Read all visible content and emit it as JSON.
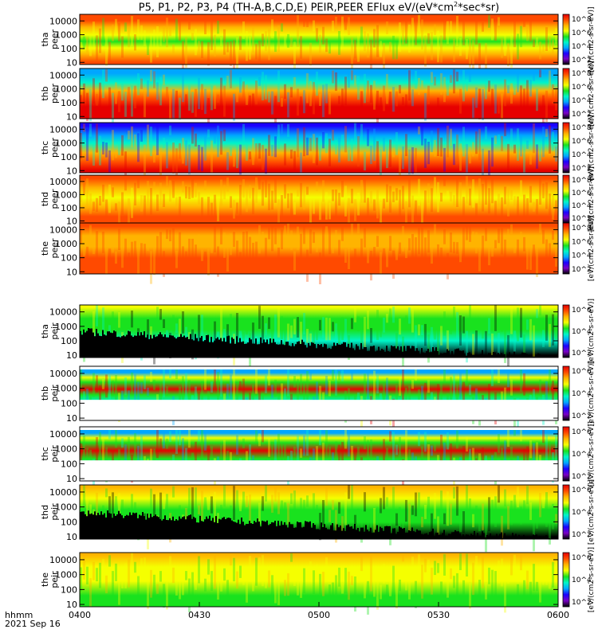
{
  "title": {
    "pre": "P5, P1, P2, P3, P4 (TH-A,B,C,D,E) PEIR,PEER EFlux eV/(eV*cm",
    "exp": "2",
    "post": "*sec*sr)"
  },
  "time_axis": {
    "caption": "hhmm",
    "date": "2021 Sep 16",
    "ticks": [
      "0400",
      "0430",
      "0500",
      "0530",
      "0600"
    ],
    "range_minutes": [
      0,
      120
    ]
  },
  "y_ticks": [
    "10",
    "100",
    "1000",
    "10000"
  ],
  "colorbar_unit": "[eV/(cm2-s-sr-eV)]",
  "colors": {
    "palette": [
      "#000000",
      "#7a00c4",
      "#1c00ff",
      "#00a6ff",
      "#00f5c8",
      "#19e21e",
      "#f5ff00",
      "#ffb400",
      "#ff4a00",
      "#e60000"
    ]
  },
  "chart_data": [
    {
      "type": "heatmap",
      "label_line1": "tha",
      "label_line2": "peer",
      "ylim": [
        7,
        30000
      ],
      "yscale": "log",
      "cb_ticks": [
        "10^8",
        "10^6",
        "10^4",
        "10^2"
      ],
      "grid": false
    },
    {
      "type": "heatmap",
      "label_line1": "thb",
      "label_line2": "peer",
      "ylim": [
        7,
        30000
      ],
      "yscale": "log",
      "cb_ticks": [
        "10^8",
        "10^6",
        "10^4",
        "10^2"
      ],
      "grid": false
    },
    {
      "type": "heatmap",
      "label_line1": "thc",
      "label_line2": "peer",
      "ylim": [
        7,
        30000
      ],
      "yscale": "log",
      "cb_ticks": [
        "10^8",
        "10^6",
        "10^4",
        "10^2"
      ],
      "grid": false
    },
    {
      "type": "heatmap",
      "label_line1": "thd",
      "label_line2": "peer",
      "ylim": [
        7,
        30000
      ],
      "yscale": "log",
      "cb_ticks": [
        "10^8",
        "10^6",
        "10^4",
        "10^2"
      ],
      "grid": false
    },
    {
      "type": "heatmap",
      "label_line1": "the",
      "label_line2": "peer",
      "ylim": [
        7,
        30000
      ],
      "yscale": "log",
      "cb_ticks": [
        "10^8",
        "10^6",
        "10^4",
        "10^2"
      ],
      "grid": false
    },
    {
      "type": "heatmap",
      "label_line1": "tha",
      "label_line2": "peir",
      "ylim": [
        7,
        30000
      ],
      "yscale": "log",
      "cb_ticks": [
        "10^6",
        "10^4",
        "10^2"
      ],
      "grid": false
    },
    {
      "type": "heatmap",
      "label_line1": "thb",
      "label_line2": "peir",
      "ylim": [
        7,
        30000
      ],
      "yscale": "log",
      "cb_ticks": [
        "10^6",
        "10^4",
        "10^2"
      ],
      "grid": false
    },
    {
      "type": "heatmap",
      "label_line1": "thc",
      "label_line2": "peir",
      "ylim": [
        7,
        30000
      ],
      "yscale": "log",
      "cb_ticks": [
        "10^6",
        "10^4",
        "10^2"
      ],
      "grid": false
    },
    {
      "type": "heatmap",
      "label_line1": "thd",
      "label_line2": "peir",
      "ylim": [
        7,
        30000
      ],
      "yscale": "log",
      "cb_ticks": [
        "10^6",
        "10^4",
        "10^2"
      ],
      "grid": false
    },
    {
      "type": "heatmap",
      "label_line1": "the",
      "label_line2": "peir",
      "ylim": [
        7,
        30000
      ],
      "yscale": "log",
      "cb_ticks": [
        "10^6",
        "10^4",
        "10^2"
      ],
      "grid": false
    }
  ]
}
